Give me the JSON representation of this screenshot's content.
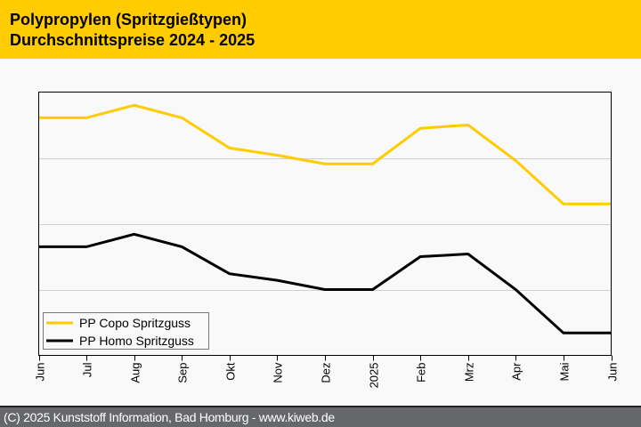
{
  "header": {
    "title_line1": "Polypropylen (Spritzgießtypen)",
    "title_line2": "Durchschnittspreise 2024 - 2025"
  },
  "footer": {
    "copyright": "(C) 2025 Kunststoff Information, Bad Homburg - www.kiweb.de"
  },
  "colors": {
    "header_bg": "#ffcc00",
    "footer_bg": "#66676b",
    "copo": "#ffcc00",
    "homo": "#000000"
  },
  "chart_data": {
    "type": "line",
    "title": "Polypropylen (Spritzgießtypen) Durchschnittspreise 2024 - 2025",
    "xlabel": "",
    "ylabel": "",
    "categories": [
      "Jun",
      "Jul",
      "Aug",
      "Sep",
      "Okt",
      "Nov",
      "Dez",
      "2025",
      "Feb",
      "Mrz",
      "Apr",
      "Mai",
      "Jun"
    ],
    "ylim": [
      0,
      4
    ],
    "y_ticks_labeled": false,
    "grid": true,
    "legend_position": "bottom-left",
    "series": [
      {
        "name": "PP Copo Spritzguss",
        "color": "#ffcc00",
        "values": [
          3.61,
          3.61,
          3.8,
          3.61,
          3.15,
          3.04,
          2.91,
          2.91,
          3.45,
          3.5,
          2.96,
          2.3,
          2.3
        ]
      },
      {
        "name": "PP Homo Spritzguss",
        "color": "#000000",
        "values": [
          1.65,
          1.65,
          1.84,
          1.65,
          1.24,
          1.14,
          1.0,
          1.0,
          1.5,
          1.54,
          1.0,
          0.34,
          0.34
        ]
      }
    ]
  }
}
